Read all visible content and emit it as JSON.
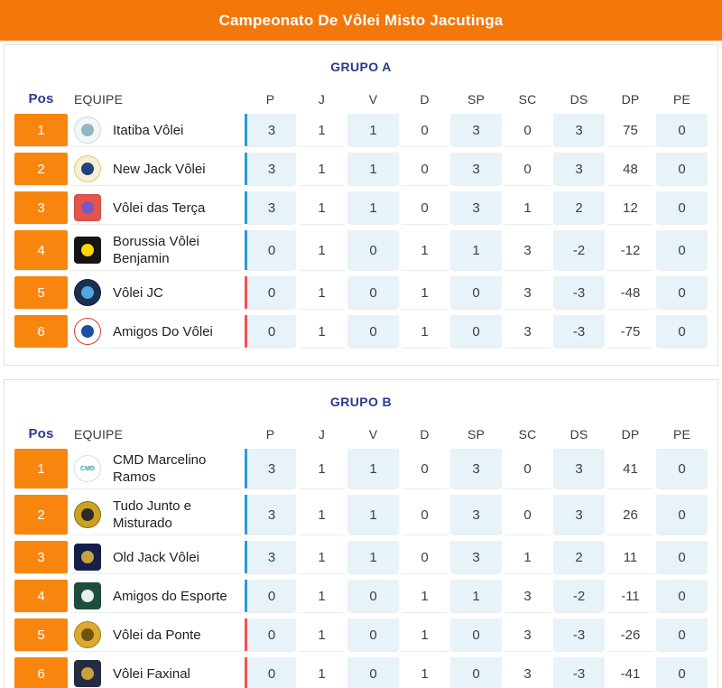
{
  "header": {
    "title": "Campeonato De Vôlei Misto Jacutinga"
  },
  "columns": {
    "pos": "Pos",
    "team": "EQUIPE",
    "stats": [
      "P",
      "J",
      "V",
      "D",
      "SP",
      "SC",
      "DS",
      "DP",
      "PE"
    ]
  },
  "colors": {
    "accent": "#f4770a",
    "badge": "#f8860e",
    "navy": "#2b3990",
    "cell_blue": "#e8f2f9",
    "qualified_bar": "#2e9bd8",
    "eliminated_bar": "#ef5350"
  },
  "groups": [
    {
      "title": "GRUPO A",
      "rows": [
        {
          "pos": "1",
          "name": "Itatiba Vôlei",
          "status": "qualified",
          "logo": {
            "shape": "circle",
            "bg": "#f3f6f7",
            "border": "#cfdadd",
            "inner": "#90b8c0",
            "label": ""
          },
          "stats": [
            "3",
            "1",
            "1",
            "0",
            "3",
            "0",
            "3",
            "75",
            "0"
          ]
        },
        {
          "pos": "2",
          "name": "New Jack Vôlei",
          "status": "qualified",
          "logo": {
            "shape": "circle",
            "bg": "#f5efd8",
            "border": "#e0c96a",
            "inner": "#23407f",
            "label": ""
          },
          "stats": [
            "3",
            "1",
            "1",
            "0",
            "3",
            "0",
            "3",
            "48",
            "0"
          ]
        },
        {
          "pos": "3",
          "name": "Vôlei das Terça",
          "status": "qualified",
          "logo": {
            "shape": "square",
            "bg": "#e2564b",
            "border": "#d24a40",
            "inner": "#7b57c0",
            "label": ""
          },
          "stats": [
            "3",
            "1",
            "1",
            "0",
            "3",
            "1",
            "2",
            "12",
            "0"
          ]
        },
        {
          "pos": "4",
          "name": "Borussia Vôlei Benjamin",
          "status": "qualified",
          "logo": {
            "shape": "square",
            "bg": "#151515",
            "border": "#151515",
            "inner": "#ffd900",
            "label": ""
          },
          "stats": [
            "0",
            "1",
            "0",
            "1",
            "1",
            "3",
            "-2",
            "-12",
            "0"
          ]
        },
        {
          "pos": "5",
          "name": "Vôlei JC",
          "status": "eliminated",
          "logo": {
            "shape": "circle",
            "bg": "#1c2f4e",
            "border": "#10203a",
            "inner": "#4fa8dd",
            "label": ""
          },
          "stats": [
            "0",
            "1",
            "0",
            "1",
            "0",
            "3",
            "-3",
            "-48",
            "0"
          ]
        },
        {
          "pos": "6",
          "name": "Amigos Do Vôlei",
          "status": "eliminated",
          "logo": {
            "shape": "circle",
            "bg": "#ffffff",
            "border": "#d23c3c",
            "inner": "#1f4fa0",
            "label": ""
          },
          "stats": [
            "0",
            "1",
            "0",
            "1",
            "0",
            "3",
            "-3",
            "-75",
            "0"
          ]
        }
      ]
    },
    {
      "title": "GRUPO B",
      "rows": [
        {
          "pos": "1",
          "name": "CMD Marcelino Ramos",
          "status": "qualified",
          "logo": {
            "shape": "circle",
            "bg": "#ffffff",
            "border": "#cfe0e0",
            "inner": "",
            "label": "CMD",
            "label_color": "#2aa5a0"
          },
          "stats": [
            "3",
            "1",
            "1",
            "0",
            "3",
            "0",
            "3",
            "41",
            "0"
          ]
        },
        {
          "pos": "2",
          "name": "Tudo Junto e Misturado",
          "status": "qualified",
          "logo": {
            "shape": "circle",
            "bg": "#caa21f",
            "border": "#8a6d12",
            "inner": "#2b2b2b",
            "label": ""
          },
          "stats": [
            "3",
            "1",
            "1",
            "0",
            "3",
            "0",
            "3",
            "26",
            "0"
          ]
        },
        {
          "pos": "3",
          "name": "Old Jack Vôlei",
          "status": "qualified",
          "logo": {
            "shape": "square",
            "bg": "#14204a",
            "border": "#14204a",
            "inner": "#c9a23f",
            "label": ""
          },
          "stats": [
            "3",
            "1",
            "1",
            "0",
            "3",
            "1",
            "2",
            "11",
            "0"
          ]
        },
        {
          "pos": "4",
          "name": "Amigos do Esporte",
          "status": "qualified",
          "logo": {
            "shape": "square",
            "bg": "#1e4d3b",
            "border": "#1e4d3b",
            "inner": "#e8efe9",
            "label": ""
          },
          "stats": [
            "0",
            "1",
            "0",
            "1",
            "1",
            "3",
            "-2",
            "-11",
            "0"
          ]
        },
        {
          "pos": "5",
          "name": "Vôlei da Ponte",
          "status": "eliminated",
          "logo": {
            "shape": "circle",
            "bg": "#dcaa2e",
            "border": "#a87f1c",
            "inner": "#6e5412",
            "label": ""
          },
          "stats": [
            "0",
            "1",
            "0",
            "1",
            "0",
            "3",
            "-3",
            "-26",
            "0"
          ]
        },
        {
          "pos": "6",
          "name": "Vôlei Faxinal",
          "status": "eliminated",
          "logo": {
            "shape": "square",
            "bg": "#262c42",
            "border": "#262c42",
            "inner": "#c9a23f",
            "label": ""
          },
          "stats": [
            "0",
            "1",
            "0",
            "1",
            "0",
            "3",
            "-3",
            "-41",
            "0"
          ]
        }
      ]
    }
  ]
}
